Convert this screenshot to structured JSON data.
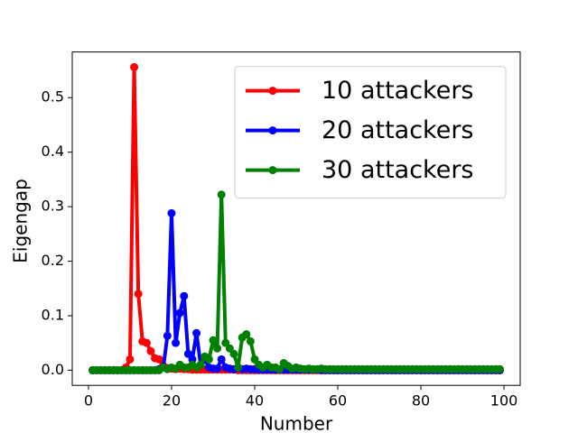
{
  "chart_data": {
    "type": "line",
    "x_label": "Number",
    "y_label": "Eigengap",
    "x": [
      1,
      2,
      3,
      4,
      5,
      6,
      7,
      8,
      9,
      10,
      11,
      12,
      13,
      14,
      15,
      16,
      17,
      18,
      19,
      20,
      21,
      22,
      23,
      24,
      25,
      26,
      27,
      28,
      29,
      30,
      31,
      32,
      33,
      34,
      35,
      36,
      37,
      38,
      39,
      40,
      41,
      42,
      43,
      44,
      45,
      46,
      47,
      48,
      49,
      50,
      51,
      52,
      53,
      54,
      55,
      56,
      57,
      58,
      59,
      60,
      61,
      62,
      63,
      64,
      65,
      66,
      67,
      68,
      69,
      70,
      71,
      72,
      73,
      74,
      75,
      76,
      77,
      78,
      79,
      80,
      81,
      82,
      83,
      84,
      85,
      86,
      87,
      88,
      89,
      90,
      91,
      92,
      93,
      94,
      95,
      96,
      97,
      98,
      99
    ],
    "series": [
      {
        "name": "10 attackers",
        "color": "#ff0000",
        "values": [
          0,
          0,
          0,
          0,
          0,
          0,
          0,
          0,
          0.005,
          0.02,
          0.556,
          0.14,
          0.053,
          0.05,
          0.035,
          0.022,
          0.02,
          0.008,
          0.004,
          0.003,
          0.002,
          0.003,
          0.002,
          0.002,
          0.001,
          0.001,
          0.001,
          0.001,
          0.001,
          0.001,
          0.001,
          0.001,
          0.001,
          0.001,
          0.001,
          0,
          0,
          0,
          0,
          0,
          0,
          0,
          0,
          0,
          0,
          0,
          0,
          0,
          0,
          0,
          0,
          0,
          0,
          0,
          0,
          0,
          0,
          0,
          0,
          0,
          0,
          0,
          0,
          0,
          0,
          0,
          0,
          0,
          0,
          0,
          0,
          0,
          0,
          0,
          0,
          0,
          0,
          0,
          0,
          0,
          0,
          0,
          0,
          0,
          0,
          0,
          0,
          0,
          0,
          0,
          0,
          0,
          0,
          0,
          0,
          0,
          0,
          0,
          0
        ]
      },
      {
        "name": "20 attackers",
        "color": "#0000ff",
        "values": [
          0,
          0,
          0,
          0,
          0,
          0,
          0,
          0,
          0,
          0,
          0,
          0,
          0,
          0,
          0,
          0,
          0.002,
          0.005,
          0.063,
          0.288,
          0.05,
          0.105,
          0.136,
          0.03,
          0.02,
          0.068,
          0.01,
          0.02,
          0.005,
          0.003,
          0.003,
          0.02,
          0.005,
          0.003,
          0.002,
          0.005,
          0.002,
          0.003,
          0.002,
          0.002,
          0.001,
          0.001,
          0.001,
          0.001,
          0.001,
          0.001,
          0.001,
          0.001,
          0.001,
          0.001,
          0.001,
          0.001,
          0.001,
          0.001,
          0.001,
          0,
          0,
          0,
          0,
          0,
          0,
          0,
          0,
          0,
          0,
          0,
          0,
          0,
          0,
          0,
          0,
          0,
          0,
          0,
          0,
          0,
          0,
          0,
          0,
          0,
          0,
          0,
          0,
          0,
          0,
          0,
          0,
          0,
          0,
          0,
          0,
          0,
          0,
          0,
          0,
          0,
          0,
          0,
          0
        ]
      },
      {
        "name": "30 attackers",
        "color": "#008000",
        "values": [
          0,
          0,
          0,
          0,
          0,
          0,
          0,
          0,
          0,
          0,
          0,
          0,
          0,
          0,
          0,
          0,
          0,
          0.005,
          0.002,
          0.005,
          0.003,
          0.01,
          0.005,
          0.005,
          0.01,
          0.005,
          0.01,
          0.025,
          0.02,
          0.055,
          0.04,
          0.322,
          0.05,
          0.04,
          0.03,
          0.005,
          0.06,
          0.066,
          0.053,
          0.02,
          0.01,
          0.005,
          0.01,
          0.005,
          0.005,
          0.002,
          0.013,
          0.008,
          0.003,
          0.005,
          0.003,
          0.002,
          0.003,
          0.002,
          0.002,
          0.003,
          0.002,
          0.002,
          0.002,
          0.002,
          0.002,
          0.002,
          0.002,
          0.002,
          0.002,
          0.002,
          0.002,
          0.002,
          0.002,
          0.002,
          0.002,
          0.002,
          0.002,
          0.002,
          0.002,
          0.002,
          0.002,
          0.002,
          0.002,
          0.002,
          0.002,
          0.002,
          0.002,
          0.002,
          0.002,
          0.002,
          0.002,
          0.002,
          0.002,
          0.002,
          0.002,
          0.002,
          0.002,
          0.002,
          0.002,
          0.002,
          0.002,
          0.002,
          0.002
        ]
      }
    ],
    "xlim": [
      -3.9,
      103.9
    ],
    "xticks": [
      0,
      20,
      40,
      60,
      80,
      100
    ],
    "ylim": [
      -0.0278,
      0.5838
    ],
    "yticks": [
      {
        "value": 0,
        "label": "0.0"
      },
      0.1,
      0.2,
      0.3,
      0.4,
      0.5
    ],
    "grid": false,
    "legend": "upper right"
  }
}
